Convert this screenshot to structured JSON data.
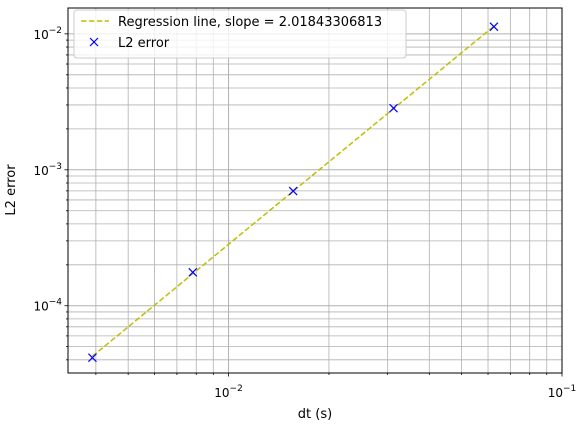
{
  "chart_data": {
    "type": "scatter",
    "xscale": "log",
    "yscale": "log",
    "xlim": [
      0.0033,
      0.1
    ],
    "ylim": [
      3.2e-05,
      0.0155
    ],
    "xlabel": "dt (s)",
    "ylabel": "L2 error",
    "grid": "both-major-minor",
    "legend_position": "upper-left",
    "x_ticks": [
      {
        "value": 0.01,
        "base": "10",
        "exp": "−2"
      },
      {
        "value": 0.1,
        "base": "10",
        "exp": "−1"
      }
    ],
    "y_ticks": [
      {
        "value": 0.0001,
        "base": "10",
        "exp": "−4"
      },
      {
        "value": 0.001,
        "base": "10",
        "exp": "−3"
      },
      {
        "value": 0.01,
        "base": "10",
        "exp": "−2"
      }
    ],
    "series": [
      {
        "name": "Regression line, slope = 2.01843306813",
        "kind": "line",
        "style": "dashed",
        "color": "#bfbf00",
        "x": [
          0.00390625,
          0.0625
        ],
        "y": [
          4.25e-05,
          0.0114
        ]
      },
      {
        "name": "L2 error",
        "kind": "marker",
        "marker": "x",
        "color": "#0000ff",
        "x": [
          0.00390625,
          0.0078125,
          0.015625,
          0.03125,
          0.0625
        ],
        "y": [
          4.15e-05,
          0.000176,
          0.000698,
          0.00284,
          0.0113
        ]
      }
    ]
  }
}
